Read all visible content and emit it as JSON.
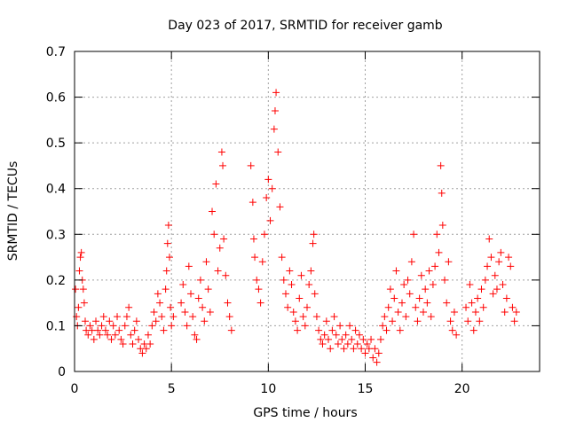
{
  "chart_data": {
    "type": "scatter",
    "title": "Day 023 of 2017, SRMTID for receiver gamb",
    "xlabel": "GPS time / hours",
    "ylabel": "SRMTID / TECUs",
    "xlim": [
      0,
      24
    ],
    "ylim": [
      0,
      0.7
    ],
    "xticks": [
      0,
      5,
      10,
      15,
      20
    ],
    "yticks": [
      0,
      0.1,
      0.2,
      0.3,
      0.4,
      0.5,
      0.6,
      0.7
    ],
    "grid": true,
    "marker": "+",
    "series": [
      {
        "name": "SRMTID",
        "color": "#ff0000",
        "points": [
          [
            0.05,
            0.18
          ],
          [
            0.1,
            0.12
          ],
          [
            0.15,
            0.1
          ],
          [
            0.2,
            0.14
          ],
          [
            0.25,
            0.22
          ],
          [
            0.3,
            0.25
          ],
          [
            0.35,
            0.26
          ],
          [
            0.4,
            0.2
          ],
          [
            0.45,
            0.18
          ],
          [
            0.5,
            0.15
          ],
          [
            0.55,
            0.11
          ],
          [
            0.6,
            0.09
          ],
          [
            0.7,
            0.08
          ],
          [
            0.8,
            0.1
          ],
          [
            0.9,
            0.09
          ],
          [
            1.0,
            0.07
          ],
          [
            1.1,
            0.11
          ],
          [
            1.2,
            0.09
          ],
          [
            1.3,
            0.08
          ],
          [
            1.4,
            0.1
          ],
          [
            1.5,
            0.12
          ],
          [
            1.6,
            0.09
          ],
          [
            1.7,
            0.08
          ],
          [
            1.8,
            0.11
          ],
          [
            1.9,
            0.07
          ],
          [
            2.0,
            0.1
          ],
          [
            2.1,
            0.08
          ],
          [
            2.2,
            0.12
          ],
          [
            2.3,
            0.09
          ],
          [
            2.4,
            0.07
          ],
          [
            2.5,
            0.06
          ],
          [
            2.6,
            0.1
          ],
          [
            2.7,
            0.12
          ],
          [
            2.8,
            0.14
          ],
          [
            2.9,
            0.08
          ],
          [
            3.0,
            0.06
          ],
          [
            3.1,
            0.09
          ],
          [
            3.2,
            0.11
          ],
          [
            3.3,
            0.07
          ],
          [
            3.4,
            0.05
          ],
          [
            3.5,
            0.04
          ],
          [
            3.6,
            0.06
          ],
          [
            3.7,
            0.05
          ],
          [
            3.8,
            0.08
          ],
          [
            3.9,
            0.06
          ],
          [
            4.0,
            0.1
          ],
          [
            4.1,
            0.13
          ],
          [
            4.2,
            0.11
          ],
          [
            4.3,
            0.17
          ],
          [
            4.4,
            0.15
          ],
          [
            4.5,
            0.12
          ],
          [
            4.6,
            0.09
          ],
          [
            4.7,
            0.18
          ],
          [
            4.75,
            0.22
          ],
          [
            4.8,
            0.28
          ],
          [
            4.85,
            0.32
          ],
          [
            4.9,
            0.25
          ],
          [
            4.95,
            0.14
          ],
          [
            5.0,
            0.1
          ],
          [
            5.1,
            0.12
          ],
          [
            5.5,
            0.15
          ],
          [
            5.6,
            0.19
          ],
          [
            5.7,
            0.13
          ],
          [
            5.8,
            0.1
          ],
          [
            5.9,
            0.23
          ],
          [
            6.0,
            0.17
          ],
          [
            6.1,
            0.12
          ],
          [
            6.2,
            0.08
          ],
          [
            6.3,
            0.07
          ],
          [
            6.4,
            0.16
          ],
          [
            6.5,
            0.2
          ],
          [
            6.6,
            0.14
          ],
          [
            6.7,
            0.11
          ],
          [
            6.8,
            0.24
          ],
          [
            6.9,
            0.18
          ],
          [
            7.0,
            0.13
          ],
          [
            7.1,
            0.35
          ],
          [
            7.2,
            0.3
          ],
          [
            7.3,
            0.41
          ],
          [
            7.4,
            0.22
          ],
          [
            7.5,
            0.27
          ],
          [
            7.6,
            0.48
          ],
          [
            7.65,
            0.45
          ],
          [
            7.7,
            0.29
          ],
          [
            7.8,
            0.21
          ],
          [
            7.9,
            0.15
          ],
          [
            8.0,
            0.12
          ],
          [
            8.1,
            0.09
          ],
          [
            9.1,
            0.45
          ],
          [
            9.2,
            0.37
          ],
          [
            9.25,
            0.29
          ],
          [
            9.3,
            0.25
          ],
          [
            9.4,
            0.2
          ],
          [
            9.5,
            0.18
          ],
          [
            9.6,
            0.15
          ],
          [
            9.7,
            0.24
          ],
          [
            9.8,
            0.3
          ],
          [
            9.9,
            0.38
          ],
          [
            10.0,
            0.42
          ],
          [
            10.1,
            0.33
          ],
          [
            10.2,
            0.4
          ],
          [
            10.3,
            0.53
          ],
          [
            10.35,
            0.57
          ],
          [
            10.4,
            0.61
          ],
          [
            10.5,
            0.48
          ],
          [
            10.6,
            0.36
          ],
          [
            10.7,
            0.25
          ],
          [
            10.8,
            0.2
          ],
          [
            10.9,
            0.17
          ],
          [
            11.0,
            0.14
          ],
          [
            11.1,
            0.22
          ],
          [
            11.2,
            0.19
          ],
          [
            11.3,
            0.13
          ],
          [
            11.4,
            0.11
          ],
          [
            11.5,
            0.09
          ],
          [
            11.6,
            0.16
          ],
          [
            11.7,
            0.21
          ],
          [
            11.8,
            0.12
          ],
          [
            11.9,
            0.1
          ],
          [
            12.0,
            0.14
          ],
          [
            12.1,
            0.19
          ],
          [
            12.2,
            0.22
          ],
          [
            12.3,
            0.28
          ],
          [
            12.35,
            0.3
          ],
          [
            12.4,
            0.17
          ],
          [
            12.5,
            0.12
          ],
          [
            12.6,
            0.09
          ],
          [
            12.7,
            0.07
          ],
          [
            12.8,
            0.06
          ],
          [
            12.9,
            0.08
          ],
          [
            13.0,
            0.11
          ],
          [
            13.1,
            0.07
          ],
          [
            13.2,
            0.05
          ],
          [
            13.3,
            0.09
          ],
          [
            13.4,
            0.12
          ],
          [
            13.5,
            0.08
          ],
          [
            13.6,
            0.06
          ],
          [
            13.7,
            0.1
          ],
          [
            13.8,
            0.07
          ],
          [
            13.9,
            0.05
          ],
          [
            14.0,
            0.08
          ],
          [
            14.1,
            0.06
          ],
          [
            14.2,
            0.1
          ],
          [
            14.3,
            0.07
          ],
          [
            14.4,
            0.05
          ],
          [
            14.5,
            0.09
          ],
          [
            14.6,
            0.06
          ],
          [
            14.7,
            0.08
          ],
          [
            14.8,
            0.05
          ],
          [
            14.9,
            0.07
          ],
          [
            15.0,
            0.04
          ],
          [
            15.1,
            0.06
          ],
          [
            15.2,
            0.05
          ],
          [
            15.3,
            0.07
          ],
          [
            15.4,
            0.03
          ],
          [
            15.5,
            0.05
          ],
          [
            15.6,
            0.02
          ],
          [
            15.7,
            0.04
          ],
          [
            15.8,
            0.07
          ],
          [
            15.9,
            0.1
          ],
          [
            16.0,
            0.12
          ],
          [
            16.1,
            0.09
          ],
          [
            16.2,
            0.14
          ],
          [
            16.3,
            0.18
          ],
          [
            16.4,
            0.11
          ],
          [
            16.5,
            0.16
          ],
          [
            16.6,
            0.22
          ],
          [
            16.7,
            0.13
          ],
          [
            16.8,
            0.09
          ],
          [
            16.9,
            0.15
          ],
          [
            17.0,
            0.19
          ],
          [
            17.1,
            0.12
          ],
          [
            17.2,
            0.2
          ],
          [
            17.3,
            0.17
          ],
          [
            17.4,
            0.24
          ],
          [
            17.5,
            0.3
          ],
          [
            17.6,
            0.14
          ],
          [
            17.7,
            0.11
          ],
          [
            17.8,
            0.16
          ],
          [
            17.9,
            0.21
          ],
          [
            18.0,
            0.13
          ],
          [
            18.1,
            0.18
          ],
          [
            18.2,
            0.15
          ],
          [
            18.3,
            0.22
          ],
          [
            18.4,
            0.12
          ],
          [
            18.5,
            0.19
          ],
          [
            18.6,
            0.23
          ],
          [
            18.7,
            0.3
          ],
          [
            18.8,
            0.26
          ],
          [
            18.9,
            0.45
          ],
          [
            18.95,
            0.39
          ],
          [
            19.0,
            0.32
          ],
          [
            19.1,
            0.2
          ],
          [
            19.2,
            0.15
          ],
          [
            19.3,
            0.24
          ],
          [
            19.4,
            0.11
          ],
          [
            19.5,
            0.09
          ],
          [
            19.6,
            0.13
          ],
          [
            19.7,
            0.08
          ],
          [
            20.2,
            0.14
          ],
          [
            20.3,
            0.11
          ],
          [
            20.4,
            0.19
          ],
          [
            20.5,
            0.15
          ],
          [
            20.6,
            0.09
          ],
          [
            20.7,
            0.13
          ],
          [
            20.8,
            0.16
          ],
          [
            20.9,
            0.11
          ],
          [
            21.0,
            0.18
          ],
          [
            21.1,
            0.14
          ],
          [
            21.2,
            0.2
          ],
          [
            21.3,
            0.23
          ],
          [
            21.4,
            0.29
          ],
          [
            21.5,
            0.25
          ],
          [
            21.6,
            0.17
          ],
          [
            21.7,
            0.21
          ],
          [
            21.8,
            0.18
          ],
          [
            21.9,
            0.24
          ],
          [
            22.0,
            0.26
          ],
          [
            22.1,
            0.19
          ],
          [
            22.2,
            0.13
          ],
          [
            22.3,
            0.16
          ],
          [
            22.4,
            0.25
          ],
          [
            22.5,
            0.23
          ],
          [
            22.6,
            0.14
          ],
          [
            22.7,
            0.11
          ],
          [
            22.8,
            0.13
          ]
        ]
      }
    ]
  }
}
